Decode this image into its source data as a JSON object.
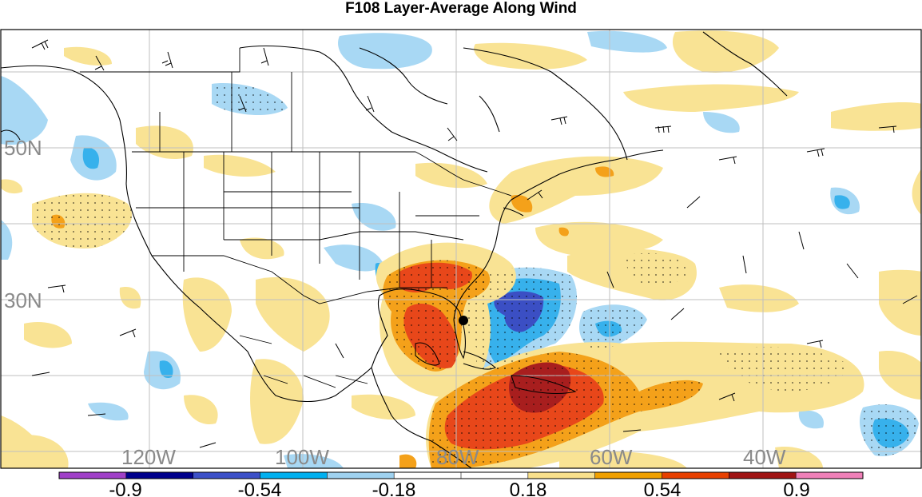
{
  "title": "F108 Layer-Average Along Wind",
  "lat_labels": [
    "50N",
    "30N"
  ],
  "lon_labels": [
    "120W",
    "100W",
    "80W",
    "60W",
    "40W"
  ],
  "colorbar": {
    "labels": [
      "-0.9",
      "-0.54",
      "-0.18",
      "0.18",
      "0.54",
      "0.9"
    ],
    "colors": [
      "#a040c8",
      "#00008c",
      "#3c50c8",
      "#00b0f0",
      "#9fd2f0",
      "#ffffff",
      "#ffffff",
      "#f8e08c",
      "#f0a000",
      "#e84000",
      "#a01414",
      "#f080b8"
    ]
  },
  "palette": {
    "light_blue": "#a8d8f4",
    "mid_blue": "#37b1ec",
    "dark_blue": "#3b4fc4",
    "yellow": "#f9e394",
    "orange": "#f4a11a",
    "red": "#e8471a",
    "dark_red": "#a81e1e"
  }
}
